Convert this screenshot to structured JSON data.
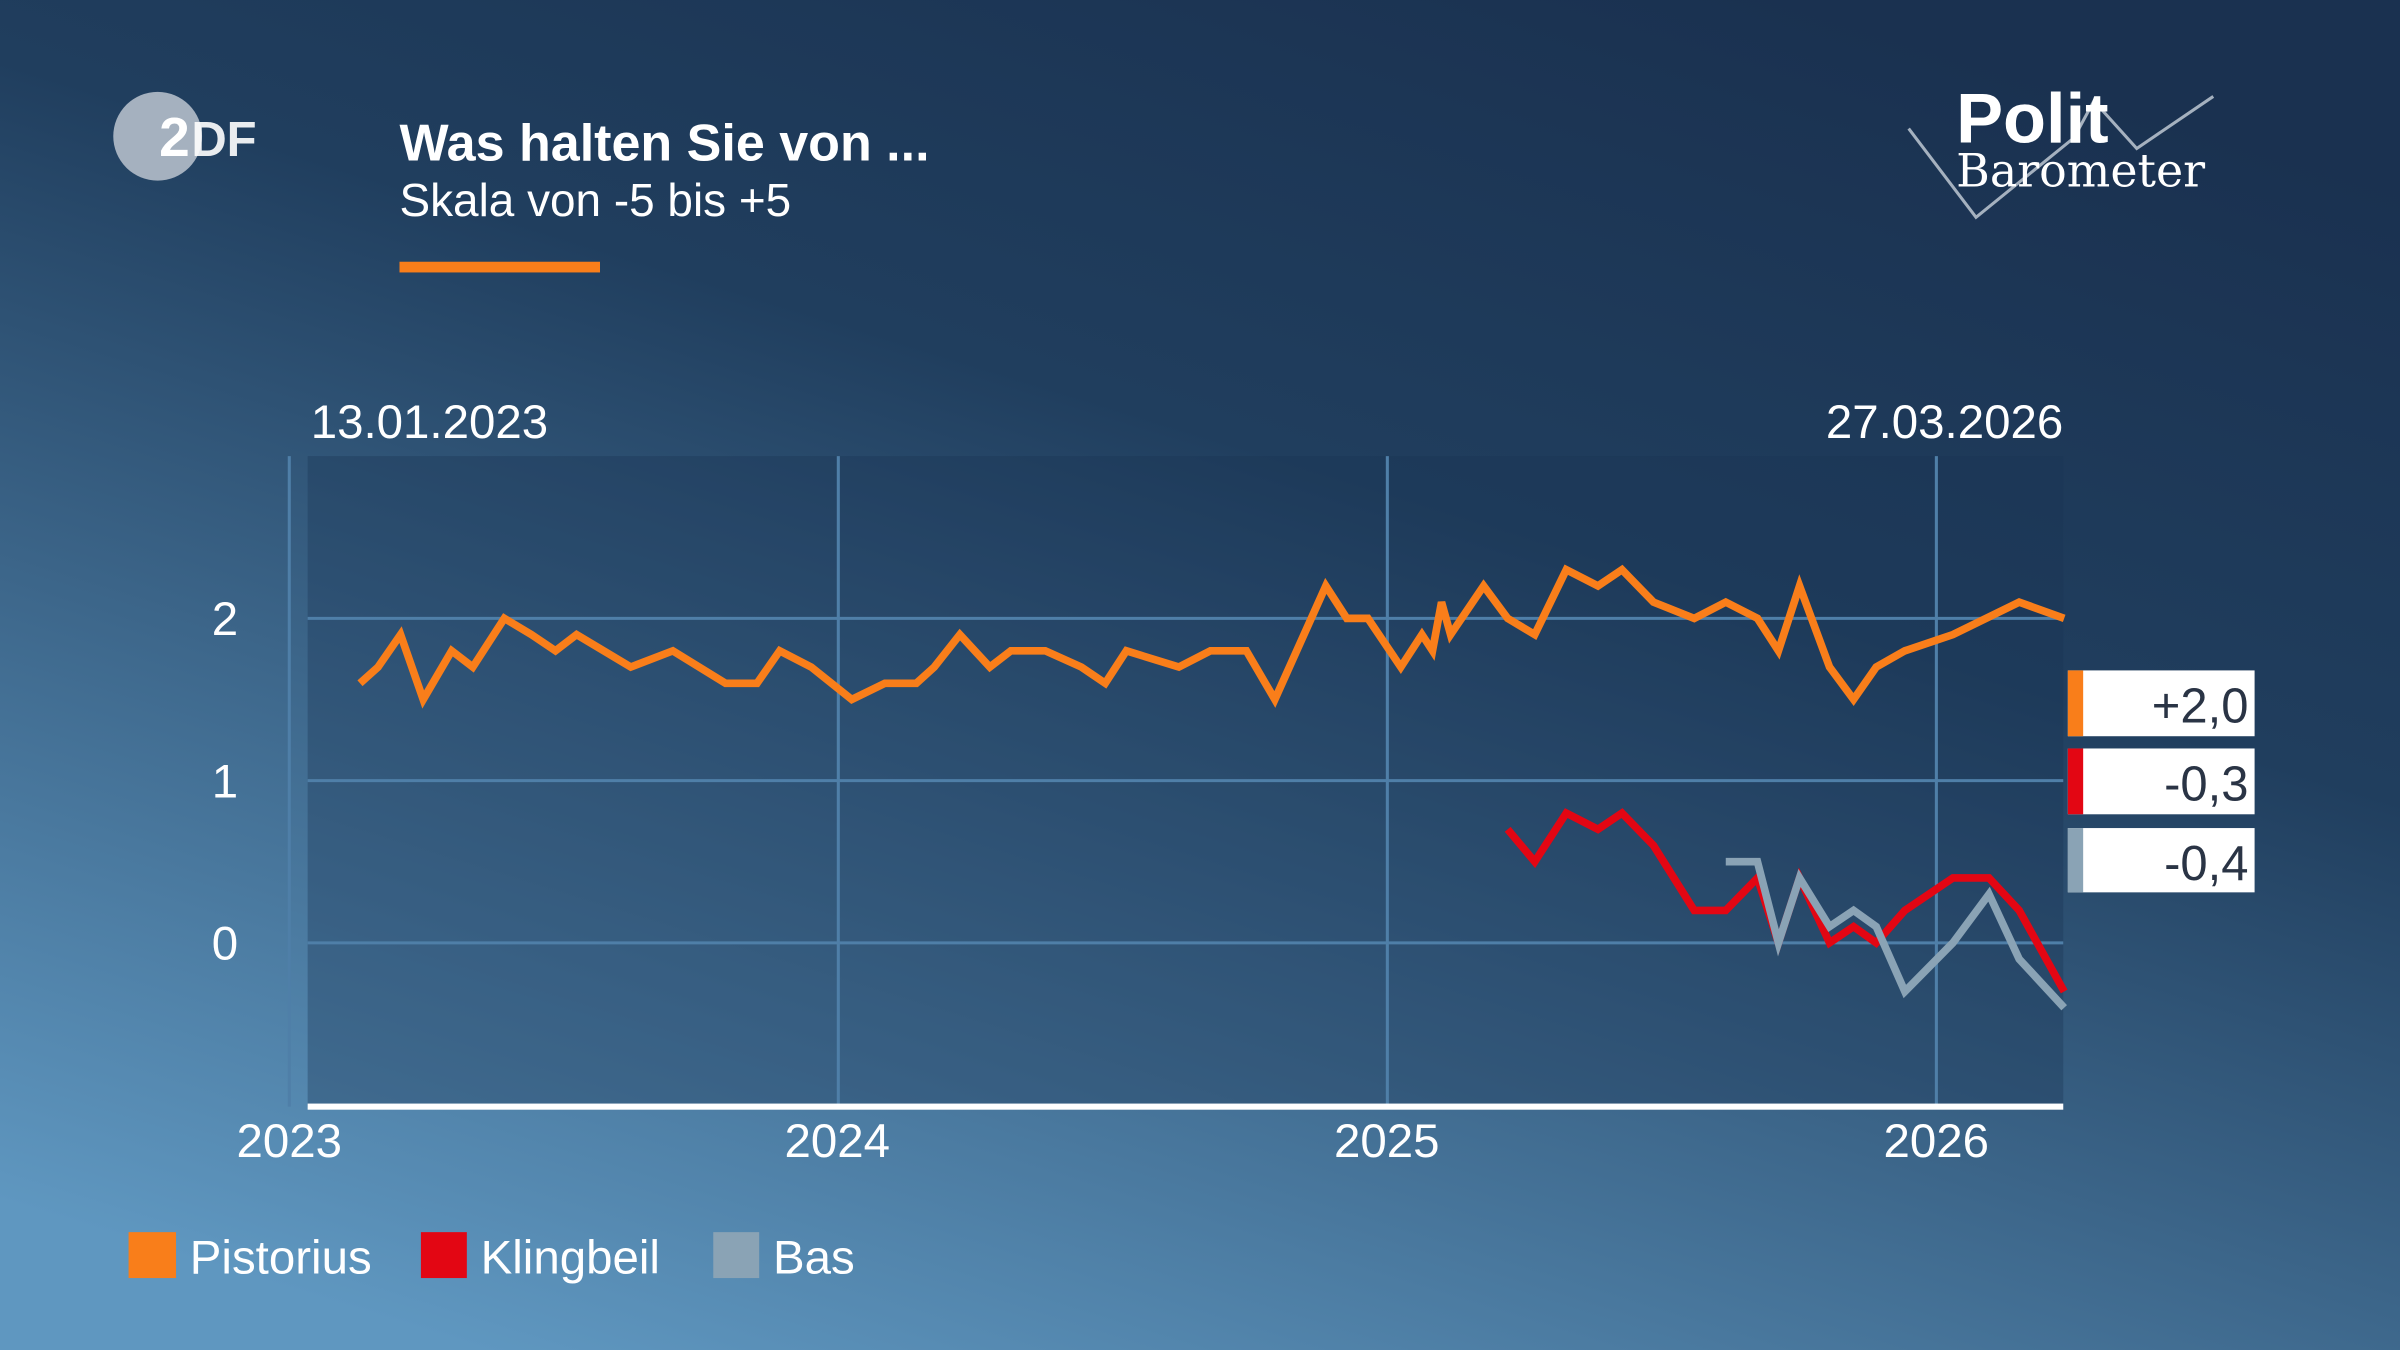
{
  "header": {
    "title": "Was halten Sie von ...",
    "subtitle": "Skala von -5 bis +5",
    "accent_color": "#f97e1a"
  },
  "logos": {
    "broadcaster": "ZDF",
    "program_line1": "Polit",
    "program_line2": "Barometer"
  },
  "chart_data": {
    "type": "line",
    "title": "Was halten Sie von ...",
    "subtitle": "Skala von -5 bis +5",
    "start_label": "13.01.2023",
    "end_label": "27.03.2026",
    "x_ticks": [
      "2023",
      "2024",
      "2025",
      "2026"
    ],
    "y_ticks": [
      "2",
      "1",
      "0"
    ],
    "ylim": [
      -1,
      3
    ],
    "grid": true,
    "legend_position": "bottom-left",
    "series": [
      {
        "name": "Pistorius",
        "color": "#f97e1a",
        "latest_label": "+2,0",
        "points": [
          [
            "17.02.2023",
            1.6
          ],
          [
            "01.03.2023",
            1.7
          ],
          [
            "16.03.2023",
            1.9
          ],
          [
            "31.03.2023",
            1.5
          ],
          [
            "19.04.2023",
            1.8
          ],
          [
            "03.05.2023",
            1.7
          ],
          [
            "24.05.2023",
            2.0
          ],
          [
            "11.06.2023",
            1.9
          ],
          [
            "27.06.2023",
            1.8
          ],
          [
            "11.07.2023",
            1.9
          ],
          [
            "16.08.2023",
            1.7
          ],
          [
            "13.09.2023",
            1.8
          ],
          [
            "18.10.2023",
            1.6
          ],
          [
            "08.11.2023",
            1.6
          ],
          [
            "23.11.2023",
            1.8
          ],
          [
            "14.12.2023",
            1.7
          ],
          [
            "10.01.2024",
            1.5
          ],
          [
            "01.02.2024",
            1.6
          ],
          [
            "22.02.2024",
            1.6
          ],
          [
            "05.03.2024",
            1.7
          ],
          [
            "22.03.2024",
            1.9
          ],
          [
            "11.04.2024",
            1.7
          ],
          [
            "25.04.2024",
            1.8
          ],
          [
            "18.05.2024",
            1.8
          ],
          [
            "11.06.2024",
            1.7
          ],
          [
            "27.06.2024",
            1.6
          ],
          [
            "11.07.2024",
            1.8
          ],
          [
            "15.08.2024",
            1.7
          ],
          [
            "05.09.2024",
            1.8
          ],
          [
            "29.09.2024",
            1.8
          ],
          [
            "18.10.2024",
            1.5
          ],
          [
            "21.11.2024",
            2.2
          ],
          [
            "05.12.2024",
            2.0
          ],
          [
            "19.12.2024",
            2.0
          ],
          [
            "10.01.2025",
            1.7
          ],
          [
            "24.01.2025",
            1.9
          ],
          [
            "31.01.2025",
            1.8
          ],
          [
            "06.02.2025",
            2.1
          ],
          [
            "12.02.2025",
            1.9
          ],
          [
            "06.03.2025",
            2.2
          ],
          [
            "22.03.2025",
            2.0
          ],
          [
            "09.04.2025",
            1.9
          ],
          [
            "30.04.2025",
            2.3
          ],
          [
            "21.05.2025",
            2.2
          ],
          [
            "06.06.2025",
            2.3
          ],
          [
            "27.06.2025",
            2.1
          ],
          [
            "24.07.2025",
            2.0
          ],
          [
            "14.08.2025",
            2.1
          ],
          [
            "04.09.2025",
            2.0
          ],
          [
            "18.09.2025",
            1.8
          ],
          [
            "02.10.2025",
            2.2
          ],
          [
            "22.10.2025",
            1.7
          ],
          [
            "07.11.2025",
            1.5
          ],
          [
            "22.11.2025",
            1.7
          ],
          [
            "11.12.2025",
            1.8
          ],
          [
            "12.01.2026",
            1.9
          ],
          [
            "25.02.2026",
            2.1
          ],
          [
            "27.03.2026",
            2.0
          ]
        ]
      },
      {
        "name": "Klingbeil",
        "color": "#e30613",
        "latest_label": "-0,3",
        "points": [
          [
            "22.03.2025",
            0.7
          ],
          [
            "09.04.2025",
            0.5
          ],
          [
            "30.04.2025",
            0.8
          ],
          [
            "21.05.2025",
            0.7
          ],
          [
            "06.06.2025",
            0.8
          ],
          [
            "27.06.2025",
            0.6
          ],
          [
            "24.07.2025",
            0.2
          ],
          [
            "14.08.2025",
            0.2
          ],
          [
            "04.09.2025",
            0.4
          ],
          [
            "18.09.2025",
            0.0
          ],
          [
            "02.10.2025",
            0.4
          ],
          [
            "22.10.2025",
            0.0
          ],
          [
            "07.11.2025",
            0.1
          ],
          [
            "22.11.2025",
            0.0
          ],
          [
            "11.12.2025",
            0.2
          ],
          [
            "12.01.2026",
            0.4
          ],
          [
            "05.02.2026",
            0.4
          ],
          [
            "25.02.2026",
            0.2
          ],
          [
            "27.03.2026",
            -0.3
          ]
        ]
      },
      {
        "name": "Bas",
        "color": "#8aa3b5",
        "latest_label": "-0,4",
        "points": [
          [
            "14.08.2025",
            0.5
          ],
          [
            "04.09.2025",
            0.5
          ],
          [
            "18.09.2025",
            0.0
          ],
          [
            "02.10.2025",
            0.4
          ],
          [
            "22.10.2025",
            0.1
          ],
          [
            "07.11.2025",
            0.2
          ],
          [
            "22.11.2025",
            0.1
          ],
          [
            "11.12.2025",
            -0.3
          ],
          [
            "12.01.2026",
            0.0
          ],
          [
            "05.02.2026",
            0.3
          ],
          [
            "25.02.2026",
            -0.1
          ],
          [
            "27.03.2026",
            -0.4
          ]
        ]
      }
    ]
  }
}
